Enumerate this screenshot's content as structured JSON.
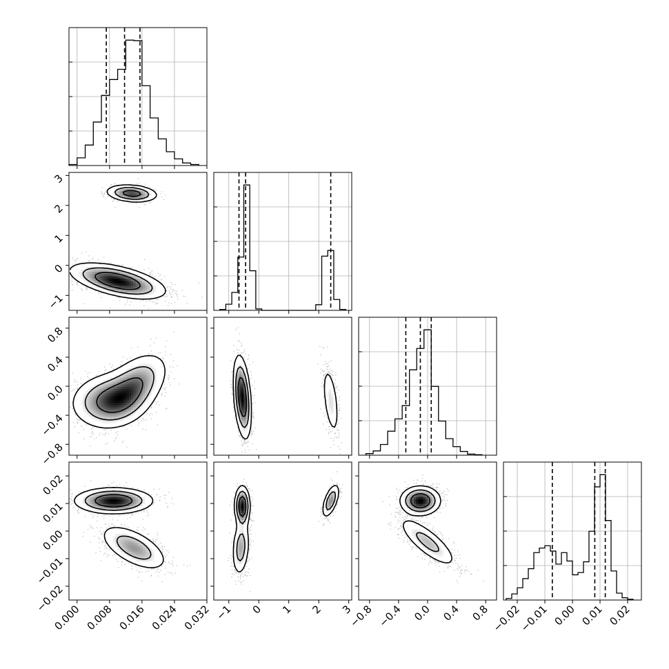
{
  "chart_data": {
    "type": "corner",
    "parameters": [
      {
        "name": "",
        "range": [
          -0.002,
          0.032
        ],
        "ticks": [
          0.0,
          0.008,
          0.016,
          0.024,
          0.032
        ],
        "tick_labels": [
          "0.000",
          "0.008",
          "0.016",
          "0.024",
          "0.032"
        ],
        "quantiles": [
          0.0072,
          0.0117,
          0.0155
        ],
        "histogram": {
          "edges": [
            -0.002,
            0.0,
            0.002,
            0.004,
            0.006,
            0.008,
            0.01,
            0.012,
            0.014,
            0.016,
            0.018,
            0.02,
            0.022,
            0.024,
            0.026,
            0.028,
            0.03
          ],
          "counts": [
            0.2,
            1.5,
            4.0,
            8.5,
            13.7,
            16.8,
            18.8,
            24.5,
            24.4,
            15.6,
            9.3,
            5.2,
            2.7,
            1.3,
            0.5,
            0.2
          ]
        }
      },
      {
        "name": "",
        "range": [
          -1.5,
          3.1
        ],
        "ticks": [
          -1,
          0,
          1,
          2,
          3
        ],
        "tick_labels": [
          "−1",
          "0",
          "1",
          "2",
          "3"
        ],
        "quantiles": [
          -0.66,
          -0.44,
          2.4
        ],
        "histogram": {
          "edges": [
            -1.3,
            -1.1,
            -0.9,
            -0.7,
            -0.5,
            -0.3,
            -0.1,
            0.1,
            0.3,
            0.5,
            0.7,
            0.9,
            1.1,
            1.3,
            1.5,
            1.7,
            1.9,
            2.1,
            2.3,
            2.5,
            2.7,
            2.9
          ],
          "counts": [
            0.2,
            1.3,
            3.8,
            11.3,
            26.6,
            8.4,
            0.3,
            0,
            0,
            0,
            0,
            0,
            0,
            0,
            0,
            0,
            1.2,
            11.5,
            12.7,
            2.3,
            0.2
          ]
        }
      },
      {
        "name": "",
        "range": [
          -0.95,
          0.95
        ],
        "ticks": [
          -0.8,
          -0.4,
          0.0,
          0.4,
          0.8
        ],
        "tick_labels": [
          "−0.8",
          "−0.4",
          "0.0",
          "0.4",
          "0.8"
        ],
        "quantiles": [
          -0.3,
          -0.1,
          0.05
        ],
        "histogram": {
          "edges": [
            -0.85,
            -0.75,
            -0.65,
            -0.55,
            -0.45,
            -0.35,
            -0.25,
            -0.15,
            -0.05,
            0.05,
            0.15,
            0.25,
            0.35,
            0.45,
            0.55,
            0.65,
            0.75
          ],
          "counts": [
            0.3,
            0.8,
            2.0,
            4.5,
            6.8,
            9.3,
            16.0,
            20.0,
            23.5,
            12.9,
            6.4,
            3.1,
            1.6,
            0.7,
            0.2,
            0.1
          ]
        }
      },
      {
        "name": "",
        "range": [
          -0.025,
          0.025
        ],
        "ticks": [
          -0.02,
          -0.01,
          0.0,
          0.01,
          0.02
        ],
        "tick_labels": [
          "−0.02",
          "−0.01",
          "0.00",
          "0.01",
          "0.02"
        ],
        "quantiles": [
          -0.0073,
          0.0081,
          0.0119
        ],
        "histogram": {
          "edges": [
            -0.024,
            -0.022,
            -0.02,
            -0.018,
            -0.016,
            -0.014,
            -0.012,
            -0.01,
            -0.008,
            -0.006,
            -0.004,
            -0.002,
            0.0,
            0.002,
            0.004,
            0.006,
            0.008,
            0.01,
            0.012,
            0.014,
            0.016,
            0.018,
            0.02,
            0.022
          ],
          "counts": [
            0.2,
            0.8,
            1.6,
            2.8,
            4.1,
            6.2,
            6.8,
            7.1,
            6.4,
            4.7,
            6.2,
            5.1,
            3.3,
            3.6,
            5.0,
            9.0,
            14.8,
            16.4,
            10.4,
            3.8,
            0.9,
            0.3,
            0.1
          ]
        }
      }
    ],
    "joint": [
      {
        "x": 0,
        "y": 1,
        "modes": [
          {
            "mx": 0.01,
            "my": -0.52,
            "sx": 0.0055,
            "sy": 0.28,
            "rho": -0.55,
            "w": 0.8
          },
          {
            "mx": 0.0135,
            "my": 2.4,
            "sx": 0.003,
            "sy": 0.14,
            "rho": -0.2,
            "w": 0.2
          }
        ]
      },
      {
        "x": 0,
        "y": 2,
        "modes": [
          {
            "mx": 0.008,
            "my": -0.2,
            "sx": 0.0045,
            "sy": 0.18,
            "rho": 0.1,
            "w": 0.55
          },
          {
            "mx": 0.014,
            "my": 0.0,
            "sx": 0.004,
            "sy": 0.22,
            "rho": 0.5,
            "w": 0.45
          }
        ]
      },
      {
        "x": 1,
        "y": 2,
        "modes": [
          {
            "mx": -0.55,
            "my": -0.15,
            "sx": 0.14,
            "sy": 0.27,
            "rho": -0.35,
            "w": 0.8
          },
          {
            "mx": 2.4,
            "my": -0.2,
            "sx": 0.14,
            "sy": 0.25,
            "rho": -0.5,
            "w": 0.2
          }
        ]
      },
      {
        "x": 0,
        "y": 3,
        "modes": [
          {
            "mx": 0.009,
            "my": 0.011,
            "sx": 0.0045,
            "sy": 0.0022,
            "rho": 0.0,
            "w": 0.6
          },
          {
            "mx": 0.014,
            "my": -0.006,
            "sx": 0.004,
            "sy": 0.004,
            "rho": -0.6,
            "w": 0.4
          }
        ]
      },
      {
        "x": 1,
        "y": 3,
        "modes": [
          {
            "mx": -0.55,
            "my": 0.009,
            "sx": 0.12,
            "sy": 0.0035,
            "rho": 0.0,
            "w": 0.45
          },
          {
            "mx": -0.6,
            "my": -0.006,
            "sx": 0.14,
            "sy": 0.005,
            "rho": 0.2,
            "w": 0.35
          },
          {
            "mx": 2.4,
            "my": 0.011,
            "sx": 0.14,
            "sy": 0.003,
            "rho": 0.6,
            "w": 0.2
          }
        ]
      },
      {
        "x": 2,
        "y": 3,
        "modes": [
          {
            "mx": -0.1,
            "my": 0.011,
            "sx": 0.13,
            "sy": 0.0025,
            "rho": 0.0,
            "w": 0.6
          },
          {
            "mx": 0.0,
            "my": -0.004,
            "sx": 0.2,
            "sy": 0.0045,
            "rho": -0.8,
            "w": 0.4
          }
        ]
      }
    ],
    "grid": true
  }
}
